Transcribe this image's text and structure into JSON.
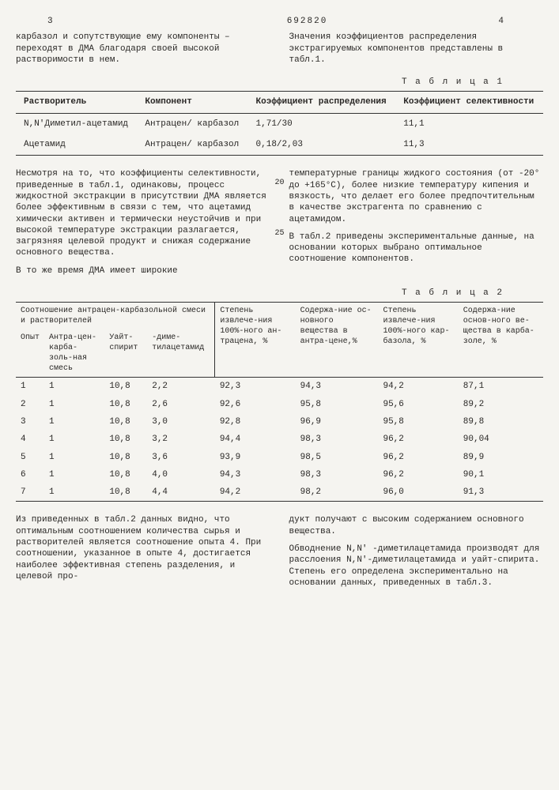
{
  "page": {
    "left_num": "3",
    "doc_num": "692820",
    "right_num": "4"
  },
  "intro_left": "карбазол и сопутствующие ему компоненты – переходят в ДМА благодаря своей высокой растворимости в нем.",
  "intro_right": "Значения коэффициентов распределения экстрагируемых компонентов представлены в табл.1.",
  "t1": {
    "label": "Т а б л и ц а 1",
    "head": [
      "Растворитель",
      "Компонент",
      "Коэффициент распределения",
      "Коэффициент селективности"
    ],
    "rows": [
      [
        "N,N'Диметил-ацетамид",
        "Антрацен/ карбазол",
        "1,71/30",
        "11,1"
      ],
      [
        "Ацетамид",
        "Антрацен/ карбазол",
        "0,18/2,03",
        "11,3"
      ]
    ]
  },
  "mid_left_1": "Несмотря на то, что коэффициенты селективности, приведенные в табл.1, одинаковы, процесс жидкостной экстракции в присутствии ДМА является более эффективным в связи с тем, что ацетамид химически активен и термически неустойчив и при высокой температуре экстракции разлагается, загрязняя целевой продукт и снижая содержание основного вещества.",
  "mid_left_2": "В то же время ДМА имеет широкие",
  "mid_right_1": "температурные границы жидкого состояния (от -20° до +165°С), более низкие температуру кипения и вязкость, что делает его более предпочтительным в качестве экстрагента по сравнению с ацетамидом.",
  "mid_right_2": "В табл.2 приведены экспериментальные данные, на основании которых выбрано оптимальное соотношение компонентов.",
  "line20": "20",
  "line25": "25",
  "t2": {
    "label": "Т а б л и ц а 2",
    "group_head": "Соотношение антрацен-карбазольной смеси и растворителей",
    "head": [
      "Опыт",
      "Антра-цен-карба-золь-ная смесь",
      "Уайт-спирит",
      "-диме-тилацетамид",
      "Степень извлече-ния 100%-ного ан-трацена, %",
      "Содержа-ние ос-новного вещества в антра-цене,%",
      "Степень извлече-ния 100%-ного кар-базола, %",
      "Содержа-ние основ-ного ве-щества в карба-золе, %"
    ],
    "rows": [
      [
        "1",
        "1",
        "10,8",
        "2,2",
        "92,3",
        "94,3",
        "94,2",
        "87,1"
      ],
      [
        "2",
        "1",
        "10,8",
        "2,6",
        "92,6",
        "95,8",
        "95,6",
        "89,2"
      ],
      [
        "3",
        "1",
        "10,8",
        "3,0",
        "92,8",
        "96,9",
        "95,8",
        "89,8"
      ],
      [
        "4",
        "1",
        "10,8",
        "3,2",
        "94,4",
        "98,3",
        "96,2",
        "90,04"
      ],
      [
        "5",
        "1",
        "10,8",
        "3,6",
        "93,9",
        "98,5",
        "96,2",
        "89,9"
      ],
      [
        "6",
        "1",
        "10,8",
        "4,0",
        "94,3",
        "98,3",
        "96,2",
        "90,1"
      ],
      [
        "7",
        "1",
        "10,8",
        "4,4",
        "94,2",
        "98,2",
        "96,0",
        "91,3"
      ]
    ]
  },
  "end_left": "Из приведенных в табл.2 данных видно, что оптимальным соотношением количества сырья и растворителей является соотношение опыта 4. При соотношении, указанное в опыте 4, достигается наиболее эффективная степень разделения, и целевой про-",
  "end_right_1": "дукт получают с высоким содержанием основного вещества.",
  "end_right_2": "Обводнение N,N' -диметилацетамида производят для расслоения N,N'-диметилацетамида и уайт-спирита. Степень его определена экспериментально на основании данных, приведенных в табл.3."
}
